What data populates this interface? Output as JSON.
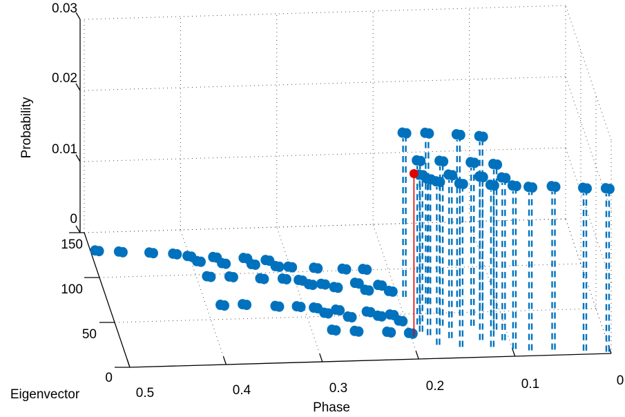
{
  "chart_data": {
    "type": "scatter",
    "subtype": "stem3",
    "xlabel": "Phase",
    "ylabel": "Eigenvector",
    "zlabel": "Probability",
    "xlim": [
      0,
      0.5
    ],
    "ylim": [
      0,
      150
    ],
    "zlim": [
      0,
      0.03
    ],
    "x_reversed": true,
    "xticks": [
      "0",
      "0.1",
      "0.2",
      "0.3",
      "0.4",
      "0.5"
    ],
    "yticks": [
      "0",
      "50",
      "100",
      "150"
    ],
    "zticks": [
      "0",
      "0.01",
      "0.02",
      "0.03"
    ],
    "grid": true,
    "colors": {
      "series": "#0072BD",
      "highlight": "#E00000"
    },
    "series": [
      {
        "points": [
          [
            0.493,
            130,
            0
          ],
          [
            0.469,
            128,
            0
          ],
          [
            0.438,
            126,
            0
          ],
          [
            0.414,
            124,
            0
          ],
          [
            0.4,
            121,
            0
          ],
          [
            0.392,
            115,
            0
          ],
          [
            0.374,
            119,
            0
          ],
          [
            0.367,
            112,
            0
          ],
          [
            0.343,
            117,
            0
          ],
          [
            0.337,
            110,
            0
          ],
          [
            0.321,
            114,
            0
          ],
          [
            0.313,
            107,
            0
          ],
          [
            0.3,
            106,
            0
          ],
          [
            0.274,
            104,
            0
          ],
          [
            0.245,
            102,
            0
          ],
          [
            0.224,
            101,
            0
          ],
          [
            0.387,
            98,
            0
          ],
          [
            0.364,
            97,
            0
          ],
          [
            0.333,
            94,
            0
          ],
          [
            0.31,
            93,
            0
          ],
          [
            0.294,
            91,
            0
          ],
          [
            0.285,
            86,
            0
          ],
          [
            0.272,
            86,
            0
          ],
          [
            0.26,
            82,
            0
          ],
          [
            0.237,
            86,
            0
          ],
          [
            0.229,
            78,
            0
          ],
          [
            0.214,
            83,
            0
          ],
          [
            0.205,
            76,
            0
          ],
          [
            0.383,
            66,
            0
          ],
          [
            0.36,
            66,
            0
          ],
          [
            0.327,
            63,
            0
          ],
          [
            0.305,
            62,
            0
          ],
          [
            0.288,
            60,
            0
          ],
          [
            0.279,
            54,
            0
          ],
          [
            0.266,
            57,
            0
          ],
          [
            0.256,
            49,
            0
          ],
          [
            0.235,
            54,
            0
          ],
          [
            0.225,
            49,
            0
          ],
          [
            0.212,
            50,
            0
          ],
          [
            0.205,
            43,
            0
          ],
          [
            0.277,
            35,
            0
          ],
          [
            0.254,
            33,
            0
          ],
          [
            0.221,
            31,
            0
          ],
          [
            0.199,
            29,
            0
          ],
          [
            0.193,
            69,
            0.0231
          ],
          [
            0.172,
            61,
            0.024
          ],
          [
            0.141,
            56,
            0.0243
          ],
          [
            0.119,
            51,
            0.0246
          ],
          [
            0.188,
            38,
            0.0231
          ],
          [
            0.165,
            36,
            0.0232
          ],
          [
            0.133,
            35,
            0.023
          ],
          [
            0.111,
            30,
            0.0233
          ],
          [
            0.188,
            30,
            0.0221
          ],
          [
            0.181,
            26,
            0.022
          ],
          [
            0.175,
            15,
            0.023
          ],
          [
            0.16,
            22,
            0.023
          ],
          [
            0.152,
            12,
            0.023
          ],
          [
            0.129,
            19,
            0.023
          ],
          [
            0.12,
            11,
            0.0228
          ],
          [
            0.106,
            18,
            0.0229
          ],
          [
            0.098,
            8,
            0.023
          ],
          [
            0.082,
            6,
            0.023
          ],
          [
            0.058,
            6,
            0.023
          ],
          [
            0.026,
            4,
            0.0229
          ],
          [
            0.003,
            2,
            0.023
          ]
        ]
      }
    ],
    "highlight": [
      0.197,
      25,
      0.0229
    ]
  }
}
